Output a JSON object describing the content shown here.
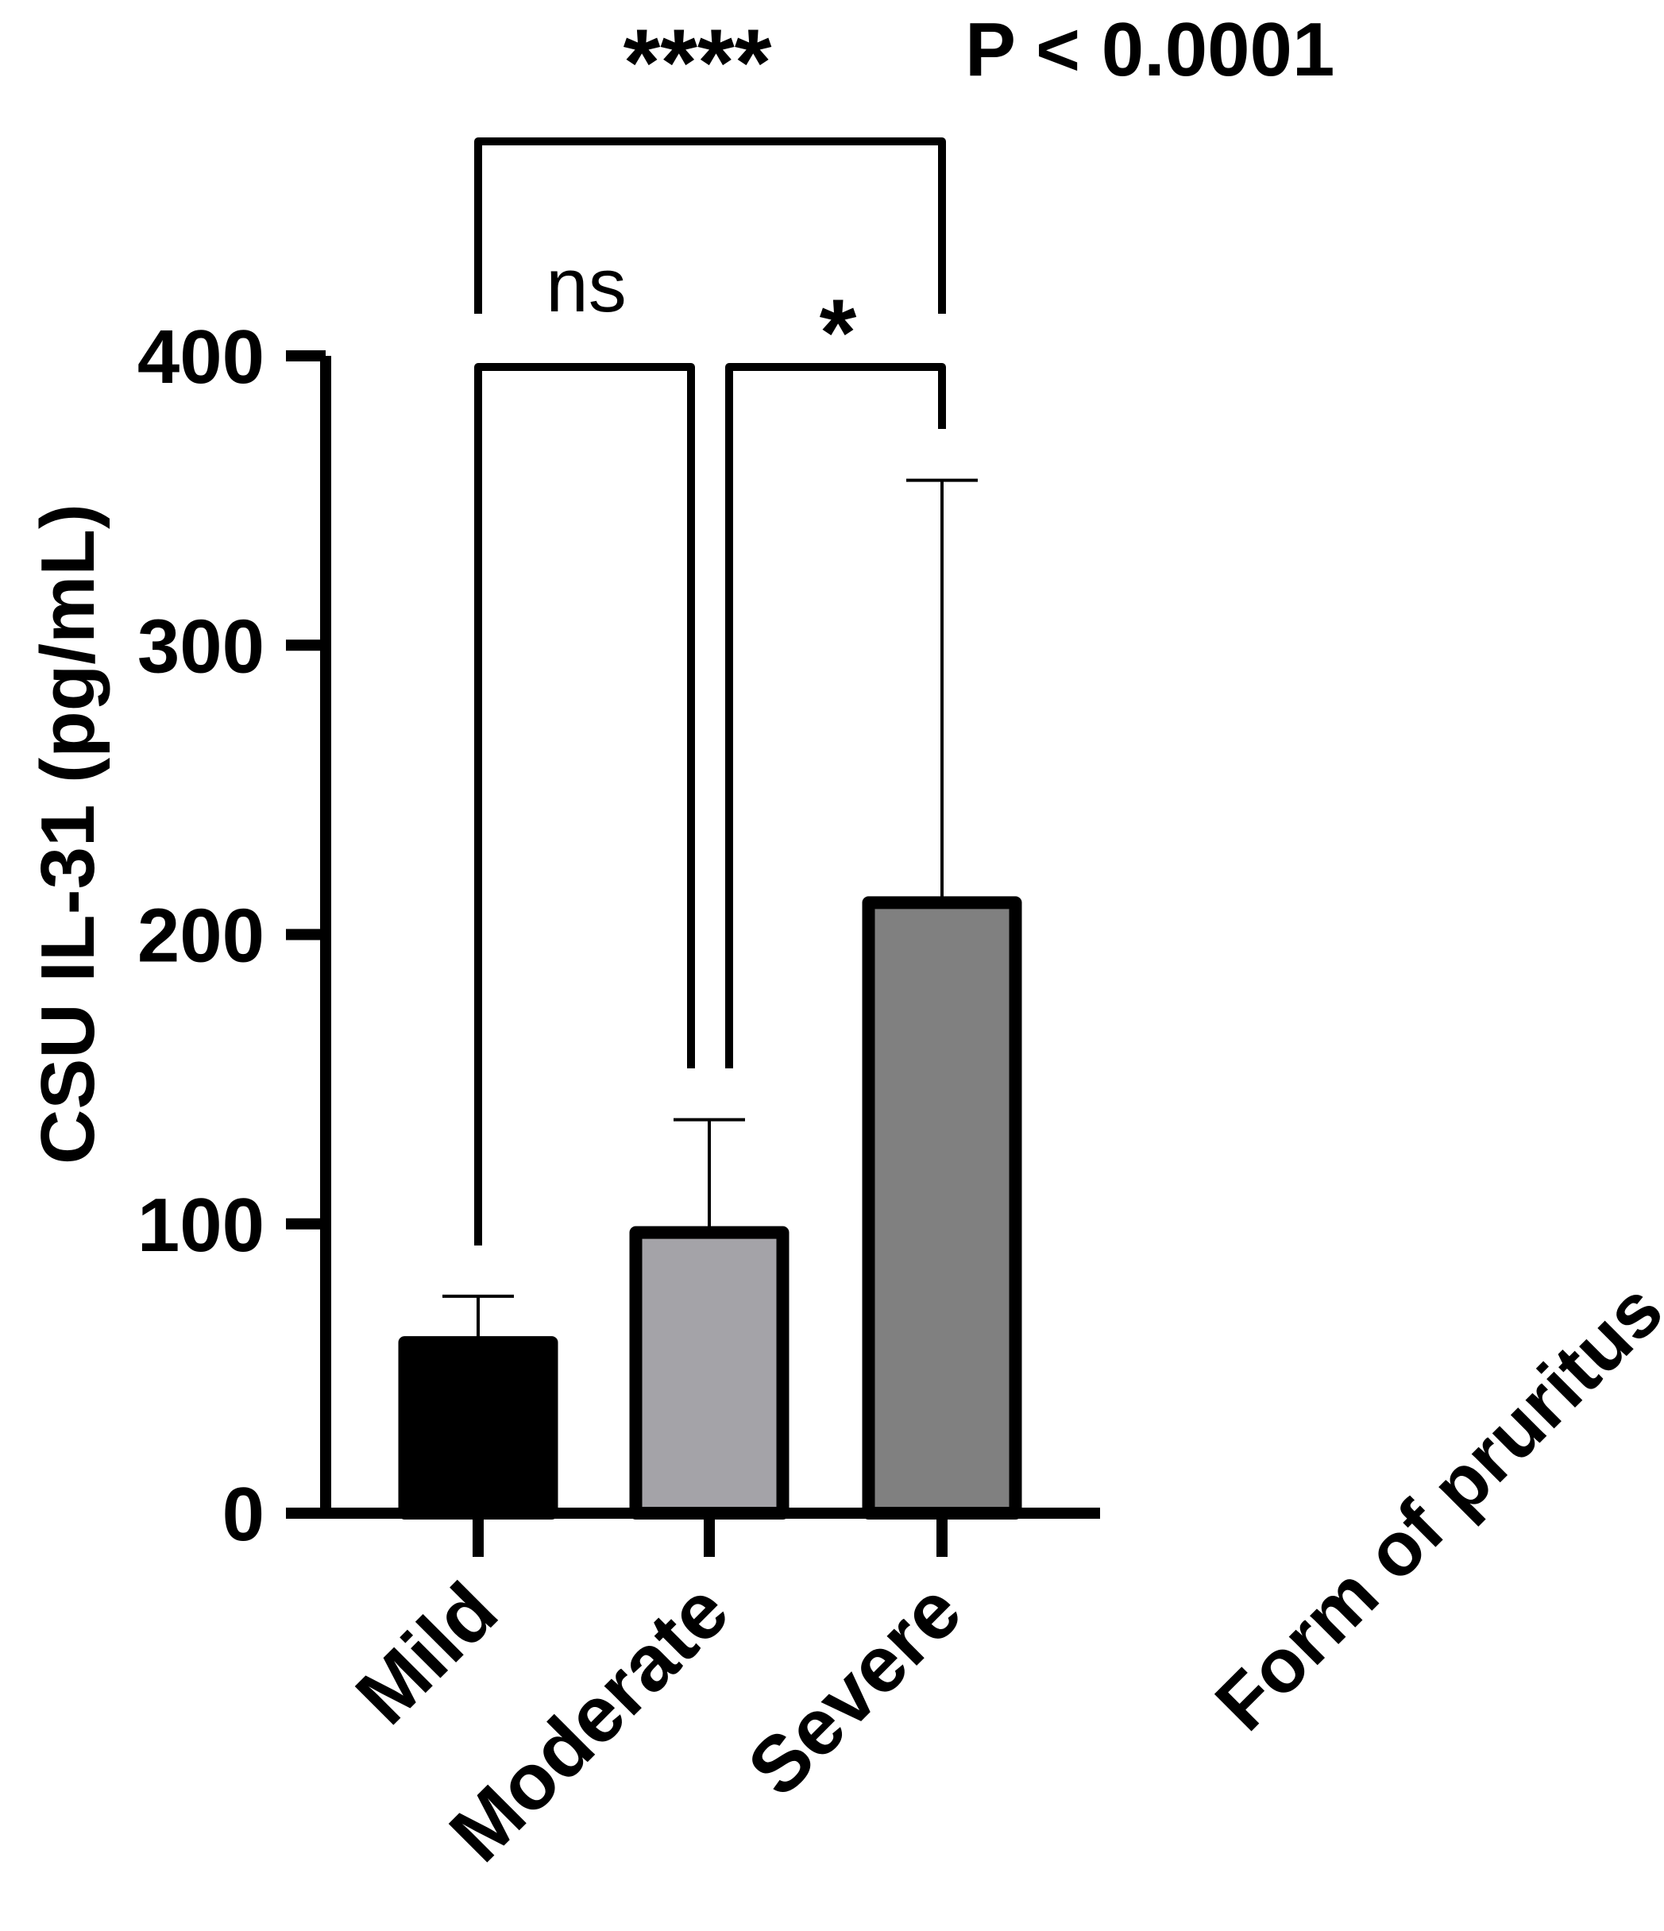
{
  "chart_data": {
    "type": "bar",
    "ylabel": "CSU IL-31  (pg/mL)",
    "xlabel": "Form of pruritus",
    "ylim": [
      0,
      400
    ],
    "yticks": [
      0,
      100,
      200,
      300,
      400
    ],
    "yticks_text": [
      "0",
      "100",
      "200",
      "300",
      "400"
    ],
    "categories": [
      "Mild",
      "Moderate",
      "Severe"
    ],
    "values": [
      59,
      97,
      211
    ],
    "error_upper": [
      75,
      136,
      357
    ],
    "bar_colors": [
      "#000000",
      "#a4a3a8",
      "#808080"
    ],
    "annotations": {
      "pvalue": "P < 0.0001",
      "comparisons": [
        {
          "groups": [
            "Mild",
            "Severe"
          ],
          "label": "****"
        },
        {
          "groups": [
            "Mild",
            "Moderate"
          ],
          "label": "ns"
        },
        {
          "groups": [
            "Moderate",
            "Severe"
          ],
          "label": "*"
        }
      ]
    }
  }
}
